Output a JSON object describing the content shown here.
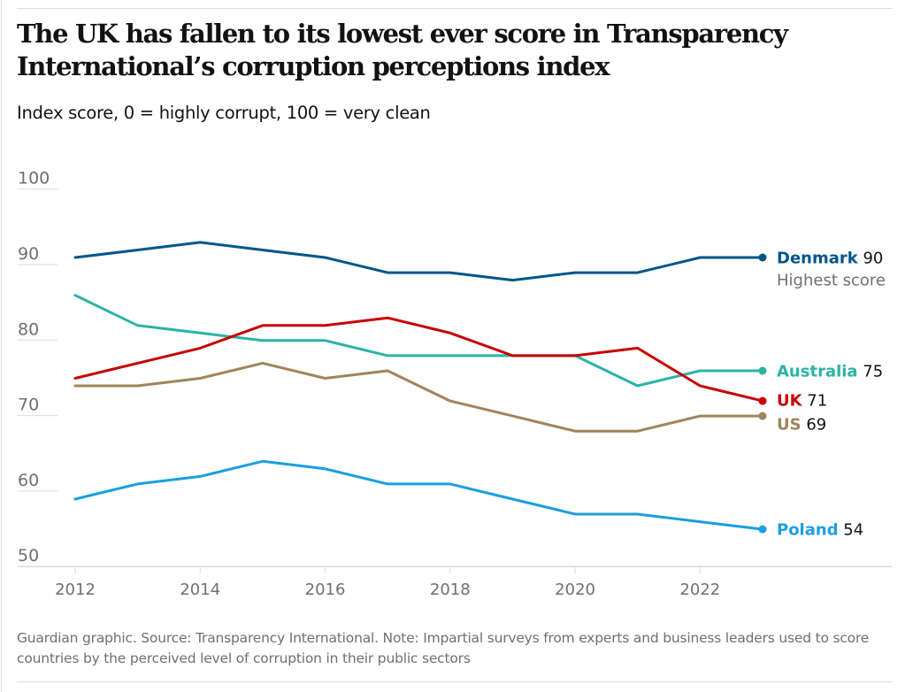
{
  "header": {
    "title": "The UK has fallen to its lowest ever score in Transparency International’s corruption perceptions index",
    "subtitle": "Index score, 0 = highly corrupt, 100 = very clean"
  },
  "footer": {
    "note": "Guardian graphic. Source: Transparency International. Note: Impartial surveys from experts and business leaders used to score countries by the perceived level of corruption in their public sectors"
  },
  "chart_data": {
    "type": "line",
    "title": "The UK has fallen to its lowest ever score in Transparency International’s corruption perceptions index",
    "subtitle": "Index score, 0 = highly corrupt, 100 = very clean",
    "xlabel": "",
    "ylabel": "",
    "x": [
      2012,
      2013,
      2014,
      2015,
      2016,
      2017,
      2018,
      2019,
      2020,
      2021,
      2022,
      2023
    ],
    "x_ticks": [
      "2012",
      "2014",
      "2016",
      "2018",
      "2020",
      "2022"
    ],
    "x_tick_values": [
      2012,
      2014,
      2016,
      2018,
      2020,
      2022
    ],
    "y_ticks": [
      "100",
      "90",
      "80",
      "70",
      "60",
      "50"
    ],
    "y_tick_values": [
      100,
      90,
      80,
      70,
      60,
      50
    ],
    "ylim": [
      50,
      100
    ],
    "xlim": [
      2012,
      2025
    ],
    "grid": true,
    "legend": "direct-labels-right",
    "series": [
      {
        "name": "Denmark",
        "color": "#005689",
        "label_value": "90",
        "note": "Highest score",
        "values": [
          90,
          91,
          92,
          91,
          90,
          88,
          88,
          87,
          88,
          88,
          90,
          90
        ]
      },
      {
        "name": "Australia",
        "color": "#2bb3a6",
        "label_value": "75",
        "note": "",
        "values": [
          85,
          81,
          80,
          79,
          79,
          77,
          77,
          77,
          77,
          73,
          75,
          75
        ]
      },
      {
        "name": "UK",
        "color": "#c70000",
        "label_value": "71",
        "note": "",
        "values": [
          74,
          76,
          78,
          81,
          81,
          82,
          80,
          77,
          77,
          78,
          73,
          71
        ]
      },
      {
        "name": "US",
        "color": "#a1845c",
        "label_value": "69",
        "note": "",
        "values": [
          73,
          73,
          74,
          76,
          74,
          75,
          71,
          69,
          67,
          67,
          69,
          69
        ]
      },
      {
        "name": "Poland",
        "color": "#1a9fe0",
        "label_value": "54",
        "note": "",
        "values": [
          58,
          60,
          61,
          63,
          62,
          60,
          60,
          58,
          56,
          56,
          55,
          54
        ]
      }
    ]
  }
}
